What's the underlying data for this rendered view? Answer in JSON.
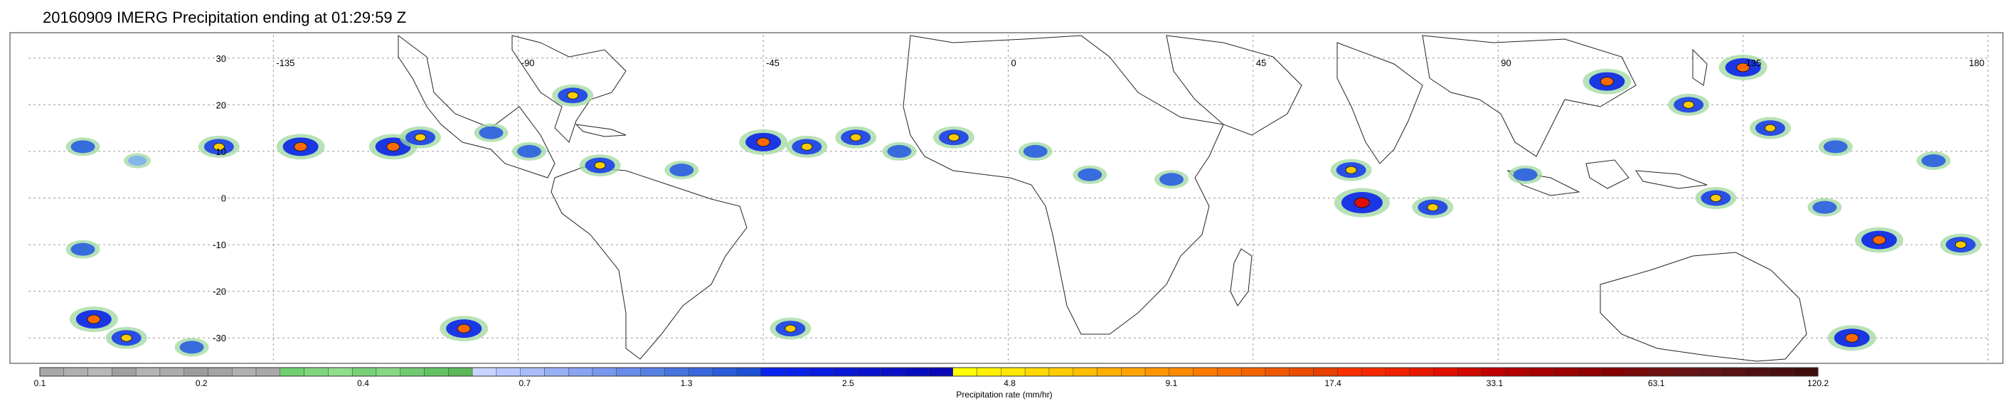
{
  "title": "20160909 IMERG Precipitation ending at 01:29:59 Z",
  "map": {
    "lon_range": [
      -180,
      180
    ],
    "lat_range": [
      -35,
      35
    ],
    "grid": true,
    "lon_ticks": [
      {
        "value": -135,
        "label": "-135"
      },
      {
        "value": -90,
        "label": "-90"
      },
      {
        "value": -45,
        "label": "-45"
      },
      {
        "value": 0,
        "label": "0"
      },
      {
        "value": 45,
        "label": "45"
      },
      {
        "value": 90,
        "label": "90"
      },
      {
        "value": 135,
        "label": "135"
      },
      {
        "value": 180,
        "label": "180"
      }
    ],
    "lat_ticks": [
      {
        "value": 30,
        "label": "30"
      },
      {
        "value": 20,
        "label": "20"
      },
      {
        "value": 10,
        "label": "10"
      },
      {
        "value": 0,
        "label": "0"
      },
      {
        "value": -10,
        "label": "-10"
      },
      {
        "value": -20,
        "label": "-20"
      },
      {
        "value": -30,
        "label": "-30"
      }
    ],
    "rain_cells": [
      {
        "lon": -170,
        "lat": 11,
        "intensity": 2
      },
      {
        "lon": -160,
        "lat": 8,
        "intensity": 1
      },
      {
        "lon": -145,
        "lat": 11,
        "intensity": 3
      },
      {
        "lon": -130,
        "lat": 11,
        "intensity": 4
      },
      {
        "lon": -113,
        "lat": 11,
        "intensity": 4
      },
      {
        "lon": -108,
        "lat": 13,
        "intensity": 3
      },
      {
        "lon": -95,
        "lat": 14,
        "intensity": 2
      },
      {
        "lon": -88,
        "lat": 10,
        "intensity": 2
      },
      {
        "lon": -80,
        "lat": 22,
        "intensity": 3
      },
      {
        "lon": -75,
        "lat": 7,
        "intensity": 3
      },
      {
        "lon": -60,
        "lat": 6,
        "intensity": 2
      },
      {
        "lon": -45,
        "lat": 12,
        "intensity": 4
      },
      {
        "lon": -37,
        "lat": 11,
        "intensity": 3
      },
      {
        "lon": -28,
        "lat": 13,
        "intensity": 3
      },
      {
        "lon": -20,
        "lat": 10,
        "intensity": 2
      },
      {
        "lon": -10,
        "lat": 13,
        "intensity": 3
      },
      {
        "lon": 5,
        "lat": 10,
        "intensity": 2
      },
      {
        "lon": 15,
        "lat": 5,
        "intensity": 2
      },
      {
        "lon": 30,
        "lat": 4,
        "intensity": 2
      },
      {
        "lon": 63,
        "lat": 6,
        "intensity": 3
      },
      {
        "lon": 65,
        "lat": -1,
        "intensity": 5
      },
      {
        "lon": 78,
        "lat": -2,
        "intensity": 3
      },
      {
        "lon": 95,
        "lat": 5,
        "intensity": 2
      },
      {
        "lon": 110,
        "lat": 25,
        "intensity": 4
      },
      {
        "lon": 125,
        "lat": 20,
        "intensity": 3
      },
      {
        "lon": 135,
        "lat": 28,
        "intensity": 4
      },
      {
        "lon": 140,
        "lat": 15,
        "intensity": 3
      },
      {
        "lon": 152,
        "lat": 11,
        "intensity": 2
      },
      {
        "lon": 170,
        "lat": 8,
        "intensity": 2
      },
      {
        "lon": 130,
        "lat": 0,
        "intensity": 3
      },
      {
        "lon": 150,
        "lat": -2,
        "intensity": 2
      },
      {
        "lon": 160,
        "lat": -9,
        "intensity": 4
      },
      {
        "lon": 175,
        "lat": -10,
        "intensity": 3
      },
      {
        "lon": 155,
        "lat": -30,
        "intensity": 4
      },
      {
        "lon": -168,
        "lat": -26,
        "intensity": 4
      },
      {
        "lon": -162,
        "lat": -30,
        "intensity": 3
      },
      {
        "lon": -170,
        "lat": -11,
        "intensity": 2
      },
      {
        "lon": -100,
        "lat": -28,
        "intensity": 4
      },
      {
        "lon": -40,
        "lat": -28,
        "intensity": 3
      },
      {
        "lon": -150,
        "lat": -32,
        "intensity": 2
      }
    ]
  },
  "colorbar": {
    "title": "Precipitation rate (mm/hr)",
    "colors": [
      "#a8a8a8",
      "#b0b0b0",
      "#b8b8b8",
      "#a0a0a0",
      "#b4b4b4",
      "#acacac",
      "#9c9c9c",
      "#a4a4a4",
      "#b0b0b0",
      "#a8a8a8",
      "#6fcf6f",
      "#7fd67f",
      "#8ede8e",
      "#78d078",
      "#86d886",
      "#70c870",
      "#62c262",
      "#5ab85a",
      "#c8d4ff",
      "#b8c8ff",
      "#a8bcf8",
      "#98b0f4",
      "#88a4f0",
      "#7898ec",
      "#688ce8",
      "#5880e4",
      "#4874e0",
      "#3868dc",
      "#2a5cd8",
      "#1c50d4",
      "#0a24f0",
      "#0a20e8",
      "#0a1ce0",
      "#0a18d8",
      "#0a14d0",
      "#0a10c8",
      "#080cc0",
      "#0808b8",
      "#ffff00",
      "#fff200",
      "#ffe600",
      "#ffd800",
      "#ffcc00",
      "#ffbe00",
      "#ffb000",
      "#ffa400",
      "#ff9600",
      "#ff8a00",
      "#fb7c00",
      "#f77000",
      "#f36400",
      "#ef5800",
      "#eb4c00",
      "#e74000",
      "#ff3000",
      "#f82800",
      "#f02000",
      "#e81800",
      "#e01000",
      "#d00800",
      "#c00000",
      "#b40000",
      "#a80000",
      "#9c0000",
      "#900000",
      "#840000",
      "#7a0a0a",
      "#701010",
      "#681414",
      "#601414",
      "#581212",
      "#501010",
      "#4a0e0e",
      "#420c0c"
    ],
    "labels": [
      "0.1",
      "0.2",
      "0.4",
      "0.7",
      "1.3",
      "2.5",
      "4.8",
      "9.1",
      "17.4",
      "33.1",
      "63.1",
      "120.2"
    ]
  }
}
